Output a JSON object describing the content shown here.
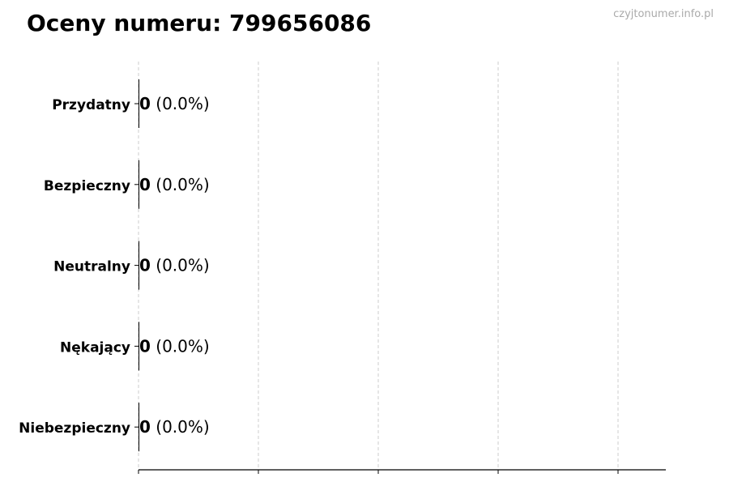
{
  "title": "Oceny numeru: 799656086",
  "watermark": "czyjtonumer.info.pl",
  "chart_data": {
    "type": "bar",
    "orientation": "horizontal",
    "title": "Oceny numeru: 799656086",
    "categories": [
      "Przydatny",
      "Bezpieczny",
      "Neutralny",
      "Nękający",
      "Niebezpieczny"
    ],
    "values": [
      0,
      0,
      0,
      0,
      0
    ],
    "labels": [
      {
        "count": "0",
        "pct": "(0.0%)"
      },
      {
        "count": "0",
        "pct": "(0.0%)"
      },
      {
        "count": "0",
        "pct": "(0.0%)"
      },
      {
        "count": "0",
        "pct": "(0.0%)"
      },
      {
        "count": "0",
        "pct": "(0.0%)"
      }
    ],
    "xlabel": "",
    "ylabel": "",
    "grid": "vertical dashed",
    "colors": {
      "bar": "#000000",
      "grid": "#cccccc",
      "watermark": "#aaaaaa"
    }
  }
}
